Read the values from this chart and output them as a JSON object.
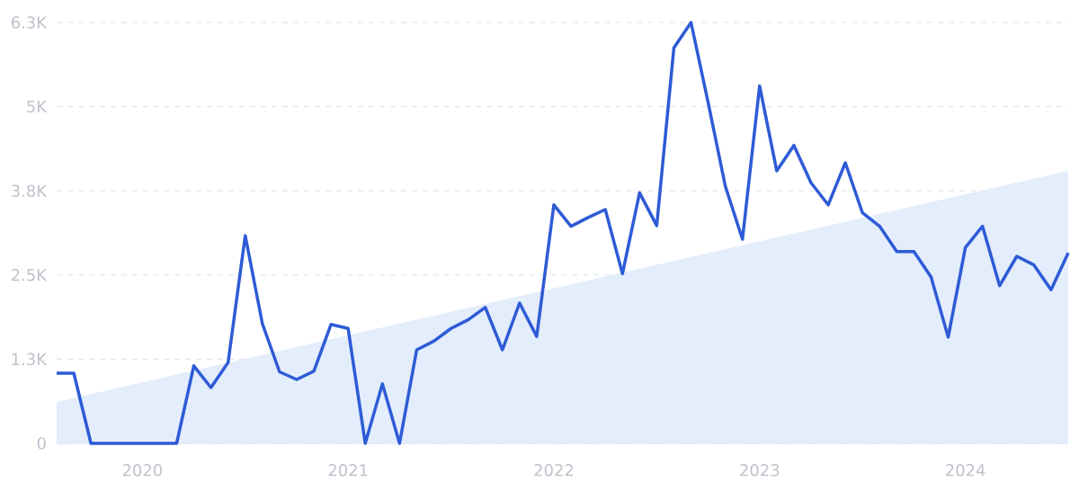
{
  "chart_data": {
    "type": "line",
    "x": [
      "2019-08",
      "2019-09",
      "2019-10",
      "2019-11",
      "2019-12",
      "2020-01",
      "2020-02",
      "2020-03",
      "2020-04",
      "2020-05",
      "2020-06",
      "2020-07",
      "2020-08",
      "2020-09",
      "2020-10",
      "2020-11",
      "2020-12",
      "2021-01",
      "2021-02",
      "2021-03",
      "2021-04",
      "2021-05",
      "2021-06",
      "2021-07",
      "2021-08",
      "2021-09",
      "2021-10",
      "2021-11",
      "2021-12",
      "2022-01",
      "2022-02",
      "2022-03",
      "2022-04",
      "2022-05",
      "2022-06",
      "2022-07",
      "2022-08",
      "2022-09",
      "2022-10",
      "2022-11",
      "2022-12",
      "2023-01",
      "2023-02",
      "2023-03",
      "2023-04",
      "2023-05",
      "2023-06",
      "2023-07",
      "2023-08",
      "2023-09",
      "2023-10",
      "2023-11",
      "2023-12",
      "2024-01",
      "2024-02",
      "2024-03",
      "2024-04",
      "2024-05",
      "2024-06",
      "2024-07"
    ],
    "series": [
      {
        "type": "area",
        "color": "#e3edfb",
        "x": [
          "2019-08",
          "2024-07"
        ],
        "values": [
          620,
          4080
        ]
      },
      {
        "color": "#2e5bd6",
        "values": [
          1050,
          1050,
          0,
          0,
          0,
          0,
          0,
          0,
          1160,
          835,
          1210,
          3110,
          1790,
          1070,
          956,
          1080,
          1780,
          1720,
          0,
          890,
          0,
          1400,
          1530,
          1720,
          1850,
          2035,
          1400,
          2100,
          1600,
          3570,
          3250,
          3380,
          3500,
          2540,
          3750,
          3260,
          5920,
          6300,
          5100,
          3850,
          3055,
          5350,
          4080,
          4460,
          3900,
          3570,
          4200,
          3450,
          3250,
          2870,
          2870,
          2490,
          1590,
          2930,
          3250,
          2360,
          2800,
          2670,
          2300,
          2850
        ]
      }
    ],
    "xlim": [
      "2019-08",
      "2024-07"
    ],
    "xticks": [
      "2020",
      "2021",
      "2022",
      "2023",
      "2024"
    ],
    "ylim": [
      0,
      6300
    ],
    "yticks": [
      0,
      {
        "value": 1260,
        "label": "1.3K"
      },
      {
        "value": 2520,
        "label": "2.5K"
      },
      {
        "value": 3780,
        "label": "3.8K"
      },
      {
        "value": 5040,
        "label": "5K"
      },
      {
        "value": 6300,
        "label": "6.3K"
      }
    ],
    "grid": "y",
    "marker": "none",
    "line_style": "solid"
  }
}
